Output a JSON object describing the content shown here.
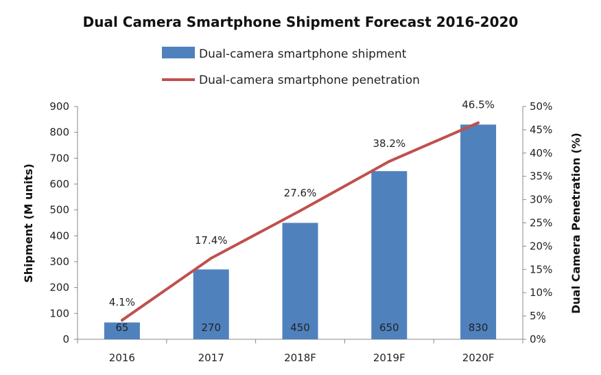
{
  "chart_data": {
    "type": "bar",
    "title": "Dual Camera Smartphone Shipment Forecast 2016-2020",
    "categories": [
      "2016",
      "2017",
      "2018F",
      "2019F",
      "2020F"
    ],
    "series": [
      {
        "name": "Dual-camera smartphone shipment",
        "type": "bar",
        "axis": "left",
        "values": [
          65,
          270,
          450,
          650,
          830
        ],
        "labels": [
          "65",
          "270",
          "450",
          "650",
          "830"
        ],
        "color": "#4f81bd"
      },
      {
        "name": "Dual-camera smartphone penetration",
        "type": "line",
        "axis": "right",
        "values": [
          4.1,
          17.4,
          27.6,
          38.2,
          46.5
        ],
        "labels": [
          "4.1%",
          "17.4%",
          "27.6%",
          "38.2%",
          "46.5%"
        ],
        "color": "#c0504d"
      }
    ],
    "ylabel": "Shipment (M units)",
    "y2label": "Dual Camera Penetration (%)",
    "ylim": [
      0,
      900
    ],
    "y2lim": [
      0,
      50
    ],
    "yticks": [
      "0",
      "100",
      "200",
      "300",
      "400",
      "500",
      "600",
      "700",
      "800",
      "900"
    ],
    "y2ticks": [
      "0%",
      "5%",
      "10%",
      "15%",
      "20%",
      "25%",
      "30%",
      "35%",
      "40%",
      "45%",
      "50%"
    ],
    "grid": false,
    "legend_position": "top-center"
  }
}
